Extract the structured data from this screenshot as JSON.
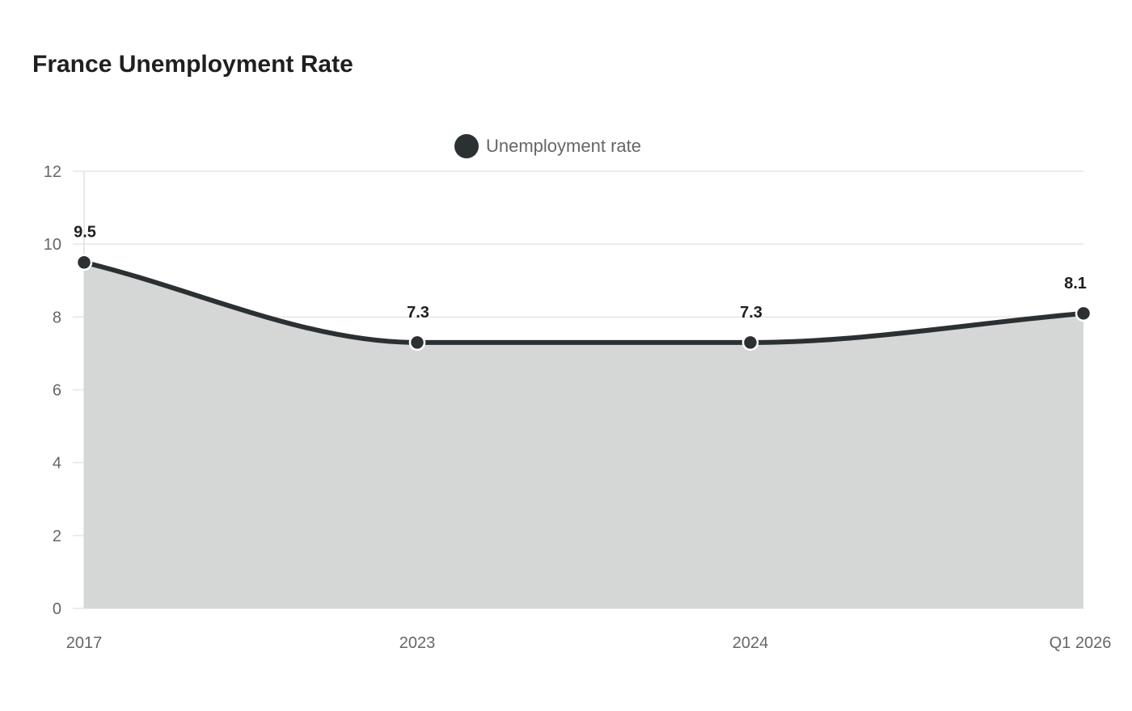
{
  "chart_data": {
    "type": "area",
    "title": "France Unemployment Rate",
    "categories": [
      "2017",
      "2023",
      "2024",
      "Q1 2026"
    ],
    "series": [
      {
        "name": "Unemployment rate",
        "values": [
          9.5,
          7.3,
          7.3,
          8.1
        ],
        "labels": [
          "9.5",
          "7.3",
          "7.3",
          "8.1"
        ],
        "color": "#2b3133",
        "fill": "#d5d7d6"
      }
    ],
    "ylim": [
      0,
      12
    ],
    "yticks": [
      "0",
      "2",
      "4",
      "6",
      "8",
      "10",
      "12"
    ],
    "legend": "top-center",
    "grid": true
  }
}
